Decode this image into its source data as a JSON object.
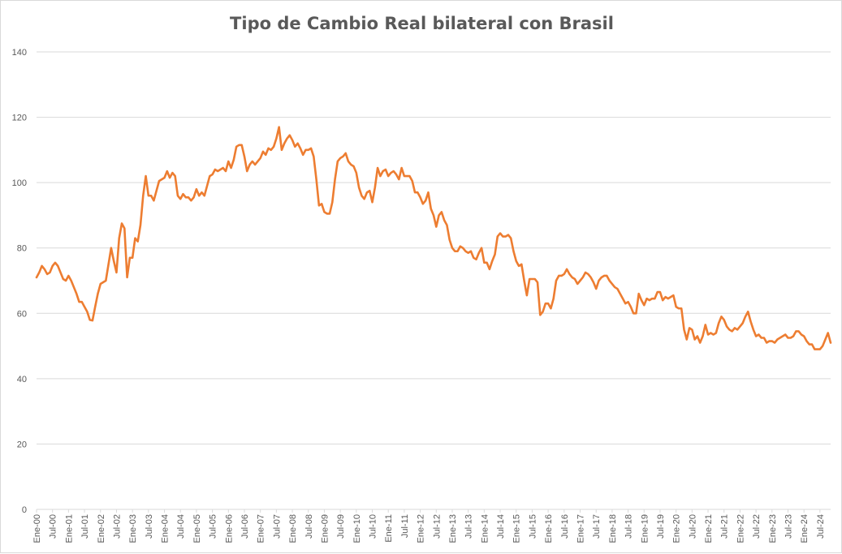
{
  "chart_data": {
    "type": "line",
    "title": "Tipo de Cambio Real bilateral con Brasil",
    "xlabel": "",
    "ylabel": "",
    "ylim": [
      0,
      140
    ],
    "yticks": [
      0,
      20,
      40,
      60,
      80,
      100,
      120,
      140
    ],
    "grid": true,
    "legend": "none",
    "x_tick_labels": [
      "Ene-00",
      "Jul-00",
      "Ene-01",
      "Jul-01",
      "Ene-02",
      "Jul-02",
      "Ene-03",
      "Jul-03",
      "Ene-04",
      "Jul-04",
      "Ene-05",
      "Jul-05",
      "Ene-06",
      "Jul-06",
      "Ene-07",
      "Jul-07",
      "Ene-08",
      "Jul-08",
      "Ene-09",
      "Jul-09",
      "Ene-10",
      "Jul-10",
      "Ene-11",
      "Jul-11",
      "Ene-12",
      "Jul-12",
      "Ene-13",
      "Jul-13",
      "Ene-14",
      "Jul-14",
      "Ene-15",
      "Jul-15",
      "Ene-16",
      "Jul-16",
      "Ene-17",
      "Jul-17",
      "Ene-18",
      "Jul-18",
      "Ene-19",
      "Jul-19",
      "Ene-20",
      "Jul-20",
      "Ene-21",
      "Jul-21",
      "Ene-22",
      "Jul-22",
      "Ene-23",
      "Jul-23",
      "Ene-24",
      "Jul-24"
    ],
    "series_color": "#ed7d31",
    "series": [
      {
        "start": "2000-01",
        "frequency": "monthly",
        "values": [
          71,
          72.5,
          74.5,
          73.5,
          72,
          72.5,
          74.5,
          75.5,
          74.5,
          72.5,
          70.5,
          70,
          71.5,
          70,
          68,
          66,
          63.5,
          63.5,
          62,
          60.5,
          58,
          57.8,
          62,
          66,
          69,
          69.5,
          70,
          75,
          80,
          76,
          72.5,
          83,
          87.5,
          86,
          71,
          77,
          77,
          83,
          82,
          87,
          96,
          102,
          96,
          96,
          94.5,
          97.5,
          100.5,
          101,
          101.5,
          103.5,
          101.5,
          103,
          102,
          96,
          95,
          96.5,
          95.5,
          95.5,
          94.5,
          95.5,
          98,
          96,
          97,
          96,
          99,
          102,
          102.5,
          104,
          103.5,
          104,
          104.5,
          103.5,
          106.5,
          104.5,
          107,
          111,
          111.5,
          111.5,
          108,
          103.5,
          105.5,
          106.5,
          105.5,
          106.5,
          107.5,
          109.5,
          108.5,
          110.5,
          110,
          111,
          113.5,
          117,
          110,
          112,
          113.5,
          114.5,
          113,
          111,
          112,
          110.5,
          108.5,
          110,
          110,
          110.5,
          108,
          101,
          93,
          93.5,
          91,
          90.5,
          90.5,
          94,
          101,
          106.5,
          107.5,
          108,
          109,
          106.5,
          105.5,
          105,
          103,
          98.5,
          96,
          95,
          97,
          97.5,
          94,
          98.5,
          104.5,
          102,
          103.5,
          104,
          102,
          103,
          103.5,
          102.5,
          101,
          104.5,
          102,
          102,
          102,
          100.5,
          97,
          97,
          95.5,
          93.5,
          94.5,
          97,
          92,
          90,
          86.5,
          90,
          91,
          88.5,
          87,
          82.5,
          80,
          79,
          79,
          80.5,
          80,
          79,
          78.5,
          79,
          77,
          76.5,
          78.5,
          80,
          75.5,
          75.5,
          73.5,
          76,
          78,
          83.5,
          84.5,
          83.5,
          83.5,
          84,
          83,
          79,
          76,
          74.5,
          75,
          70,
          65.5,
          70.5,
          70.5,
          70.5,
          69.5,
          59.5,
          60.5,
          63,
          63,
          61.5,
          64.5,
          70,
          71.5,
          71.5,
          72,
          73.5,
          72,
          71,
          70.5,
          69,
          70,
          71,
          72.5,
          72,
          71,
          69.5,
          67.5,
          70,
          71,
          71.5,
          71.5,
          70,
          69,
          68,
          67.5,
          66,
          64.5,
          63,
          63.5,
          62,
          60,
          60,
          66,
          64,
          62.5,
          64.5,
          64,
          64.5,
          64.5,
          66.5,
          66.5,
          64,
          65,
          64.5,
          65,
          65.5,
          62,
          61.5,
          61.5,
          55,
          52,
          55.5,
          55,
          52,
          53,
          51,
          53,
          56.5,
          53.5,
          54,
          53.5,
          54,
          57,
          59,
          58,
          56,
          55,
          54.5,
          55.5,
          55,
          56,
          57,
          59,
          60.5,
          57.5,
          55,
          53,
          53.5,
          52.5,
          52.5,
          51,
          51.5,
          51.5,
          51,
          52,
          52.5,
          53,
          53.5,
          52.5,
          52.5,
          53,
          54.5,
          54.5,
          53.5,
          53,
          51.5,
          50.5,
          50.5,
          49,
          49,
          49,
          50,
          52,
          54,
          51
        ]
      }
    ]
  }
}
